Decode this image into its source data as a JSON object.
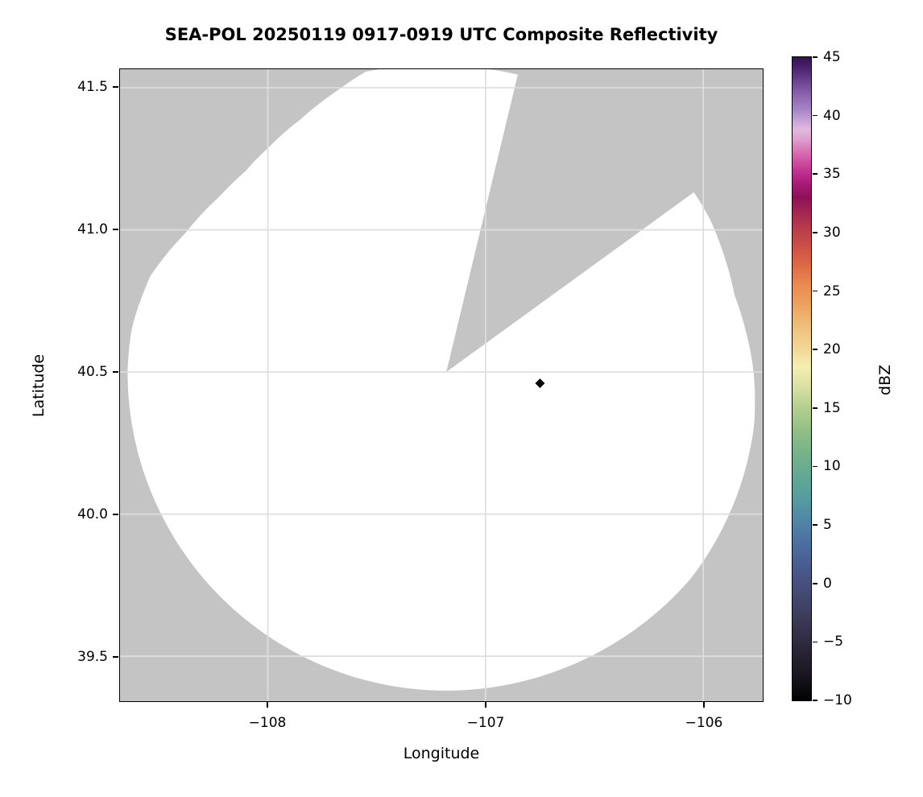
{
  "title": "SEA-POL 20250119 0917-0919 UTC Composite Reflectivity",
  "axes": {
    "xlabel": "Longitude",
    "ylabel": "Latitude",
    "x_ticks": [
      {
        "value": -108,
        "label": "−108"
      },
      {
        "value": -107,
        "label": "−107"
      },
      {
        "value": -106,
        "label": "−106"
      }
    ],
    "y_ticks": [
      {
        "value": 41.5,
        "label": "41.5"
      },
      {
        "value": 41.0,
        "label": "41.0"
      },
      {
        "value": 40.5,
        "label": "40.5"
      },
      {
        "value": 40.0,
        "label": "40.0"
      },
      {
        "value": 39.5,
        "label": "39.5"
      }
    ],
    "xlim": [
      -108.68,
      -105.73
    ],
    "ylim": [
      39.34,
      41.57
    ],
    "grid": true
  },
  "colorbar": {
    "label": "dBZ",
    "min": -10,
    "max": 45,
    "ticks": [
      {
        "value": 45,
        "label": "45"
      },
      {
        "value": 40,
        "label": "40"
      },
      {
        "value": 35,
        "label": "35"
      },
      {
        "value": 30,
        "label": "30"
      },
      {
        "value": 25,
        "label": "25"
      },
      {
        "value": 20,
        "label": "20"
      },
      {
        "value": 15,
        "label": "15"
      },
      {
        "value": 10,
        "label": "10"
      },
      {
        "value": 5,
        "label": "5"
      },
      {
        "value": 0,
        "label": "0"
      },
      {
        "value": -5,
        "label": "−5"
      },
      {
        "value": -10,
        "label": "−10"
      }
    ],
    "gradient_stops": [
      {
        "v": -10.0,
        "c": "#000000"
      },
      {
        "v": -9.0,
        "c": "#0d0b12"
      },
      {
        "v": -7.5,
        "c": "#1b1823"
      },
      {
        "v": -6.0,
        "c": "#272334"
      },
      {
        "v": -4.5,
        "c": "#322e45"
      },
      {
        "v": -3.0,
        "c": "#3b3a58"
      },
      {
        "v": -1.5,
        "c": "#42466c"
      },
      {
        "v": 0.0,
        "c": "#474f7e"
      },
      {
        "v": 1.5,
        "c": "#4a5c90"
      },
      {
        "v": 3.0,
        "c": "#4c6a9e"
      },
      {
        "v": 5.0,
        "c": "#4f81a7"
      },
      {
        "v": 7.0,
        "c": "#559aa0"
      },
      {
        "v": 9.0,
        "c": "#60a795"
      },
      {
        "v": 11.0,
        "c": "#74b289"
      },
      {
        "v": 13.0,
        "c": "#90bf85"
      },
      {
        "v": 15.0,
        "c": "#b3cf8e"
      },
      {
        "v": 17.0,
        "c": "#dde2a4"
      },
      {
        "v": 18.5,
        "c": "#f4eeb2"
      },
      {
        "v": 20.0,
        "c": "#f2d898"
      },
      {
        "v": 22.0,
        "c": "#efbf79"
      },
      {
        "v": 24.0,
        "c": "#ec9f5d"
      },
      {
        "v": 25.5,
        "c": "#ea8c52"
      },
      {
        "v": 27.0,
        "c": "#e06c46"
      },
      {
        "v": 28.5,
        "c": "#d05545"
      },
      {
        "v": 30.0,
        "c": "#bb4049"
      },
      {
        "v": 31.5,
        "c": "#a52b50"
      },
      {
        "v": 33.0,
        "c": "#8d1156"
      },
      {
        "v": 34.0,
        "c": "#a31873"
      },
      {
        "v": 35.0,
        "c": "#bc2c8c"
      },
      {
        "v": 36.0,
        "c": "#cc4d9f"
      },
      {
        "v": 37.0,
        "c": "#d973b6"
      },
      {
        "v": 38.0,
        "c": "#dfa0d0"
      },
      {
        "v": 38.8,
        "c": "#e2b9de"
      },
      {
        "v": 39.5,
        "c": "#c9a6d9"
      },
      {
        "v": 40.5,
        "c": "#a684c6"
      },
      {
        "v": 41.8,
        "c": "#8a63ad"
      },
      {
        "v": 43.0,
        "c": "#6a4190"
      },
      {
        "v": 44.0,
        "c": "#4d2470"
      },
      {
        "v": 45.0,
        "c": "#331050"
      }
    ]
  },
  "chart_data": {
    "type": "heatmap",
    "subtype": "gridded-radar-composite-reflectivity-map",
    "title": "SEA-POL 20250119 0917-0919 UTC Composite Reflectivity",
    "xlabel": "Longitude",
    "ylabel": "Latitude",
    "xlim": [
      -108.68,
      -105.73
    ],
    "ylim": [
      39.34,
      41.57
    ],
    "value_units": "dBZ",
    "value_range": [
      -10,
      45
    ],
    "radar_site": {
      "lon": -107.18,
      "lat": 40.5
    },
    "coverage_radius_km_by_azimuth_deg": [
      [
        0,
        119
      ],
      [
        15,
        119
      ],
      [
        30,
        119
      ],
      [
        45,
        119
      ],
      [
        54,
        119
      ],
      [
        60,
        118.5
      ],
      [
        68,
        117
      ],
      [
        75,
        116
      ],
      [
        82,
        117.5
      ],
      [
        90,
        119.5
      ],
      [
        100,
        121.5
      ],
      [
        115,
        123
      ],
      [
        130,
        124.5
      ],
      [
        145,
        124.2
      ],
      [
        160,
        124
      ],
      [
        180,
        124
      ],
      [
        200,
        124
      ],
      [
        220,
        124
      ],
      [
        240,
        124
      ],
      [
        260,
        124
      ],
      [
        270,
        124
      ],
      [
        278,
        123.5
      ],
      [
        288,
        121
      ],
      [
        298,
        115
      ],
      [
        308,
        111.5
      ],
      [
        315,
        110.5
      ],
      [
        322,
        111.5
      ],
      [
        330,
        113.5
      ],
      [
        338,
        117
      ],
      [
        345,
        121
      ],
      [
        352,
        120
      ],
      [
        360,
        119
      ]
    ],
    "blocked_sector_azimuth_deg": [
      13.5,
      54
    ],
    "echoes": [],
    "site_marker": {
      "lon": -106.75,
      "lat": 40.46,
      "shape": "diamond",
      "color": "#0b0b10"
    }
  },
  "colors": {
    "masked_gray": "#c4c4c4",
    "coverage_white": "#ffffff",
    "gridline": "#dedede",
    "spine": "#000000",
    "background": "#ffffff",
    "marker": "#0b0b10"
  }
}
